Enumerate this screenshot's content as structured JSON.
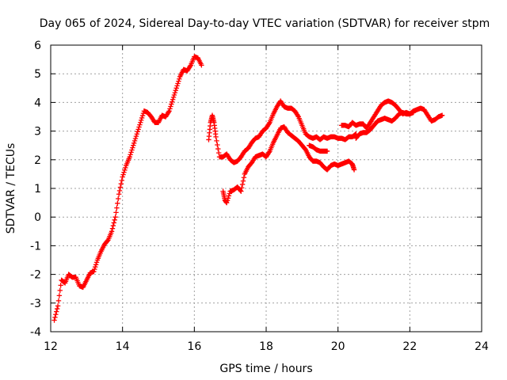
{
  "chart_data": {
    "type": "scatter",
    "title": "Day 065 of 2024, Sidereal Day-to-day VTEC variation (SDTVAR) for receiver stpm",
    "xlabel": "GPS time / hours",
    "ylabel": "SDTVAR / TECUs",
    "xlim": [
      12,
      24
    ],
    "ylim": [
      -4,
      6
    ],
    "xticks": [
      "12",
      "14",
      "16",
      "18",
      "20",
      "22",
      "24"
    ],
    "yticks": [
      "-4",
      "-3",
      "-2",
      "-1",
      "0",
      "1",
      "2",
      "3",
      "4",
      "5",
      "6"
    ],
    "grid": true,
    "marker": "plus",
    "color": "#ff0000",
    "series": [
      {
        "points": [
          [
            12.1,
            -3.6
          ],
          [
            12.2,
            -3.1
          ],
          [
            12.3,
            -2.2
          ],
          [
            12.4,
            -2.3
          ],
          [
            12.5,
            -2.0
          ],
          [
            12.6,
            -2.1
          ],
          [
            12.7,
            -2.1
          ],
          [
            12.8,
            -2.4
          ],
          [
            12.9,
            -2.45
          ],
          [
            13.0,
            -2.2
          ],
          [
            13.1,
            -1.95
          ],
          [
            13.2,
            -1.9
          ],
          [
            13.3,
            -1.5
          ],
          [
            13.4,
            -1.2
          ],
          [
            13.5,
            -0.95
          ],
          [
            13.6,
            -0.8
          ],
          [
            13.7,
            -0.5
          ],
          [
            13.8,
            0.0
          ],
          [
            13.9,
            0.8
          ],
          [
            14.0,
            1.4
          ],
          [
            14.1,
            1.8
          ],
          [
            14.2,
            2.1
          ],
          [
            14.3,
            2.5
          ],
          [
            14.4,
            2.9
          ],
          [
            14.5,
            3.3
          ],
          [
            14.6,
            3.7
          ],
          [
            14.7,
            3.65
          ],
          [
            14.8,
            3.5
          ],
          [
            14.9,
            3.3
          ],
          [
            15.0,
            3.3
          ],
          [
            15.1,
            3.55
          ],
          [
            15.2,
            3.5
          ],
          [
            15.3,
            3.7
          ],
          [
            15.4,
            4.1
          ],
          [
            15.5,
            4.5
          ],
          [
            15.6,
            4.9
          ],
          [
            15.7,
            5.15
          ],
          [
            15.8,
            5.1
          ],
          [
            15.9,
            5.3
          ],
          [
            16.0,
            5.6
          ],
          [
            16.1,
            5.55
          ],
          [
            16.2,
            5.3
          ]
        ]
      },
      {
        "points": [
          [
            16.4,
            2.7
          ],
          [
            16.45,
            3.3
          ],
          [
            16.5,
            3.55
          ],
          [
            16.55,
            3.3
          ],
          [
            16.6,
            2.8
          ],
          [
            16.7,
            2.1
          ],
          [
            16.8,
            2.1
          ],
          [
            16.9,
            2.2
          ],
          [
            17.0,
            2.0
          ],
          [
            17.1,
            1.9
          ],
          [
            17.2,
            1.95
          ],
          [
            17.3,
            2.1
          ],
          [
            17.4,
            2.3
          ],
          [
            17.5,
            2.4
          ],
          [
            17.6,
            2.6
          ],
          [
            17.7,
            2.75
          ],
          [
            17.8,
            2.8
          ],
          [
            17.9,
            3.0
          ],
          [
            18.0,
            3.1
          ],
          [
            18.1,
            3.3
          ],
          [
            18.2,
            3.6
          ],
          [
            18.3,
            3.85
          ],
          [
            18.4,
            4.05
          ],
          [
            18.5,
            3.85
          ],
          [
            18.6,
            3.8
          ],
          [
            18.7,
            3.8
          ],
          [
            18.8,
            3.7
          ],
          [
            18.9,
            3.5
          ],
          [
            19.0,
            3.2
          ],
          [
            19.1,
            2.9
          ],
          [
            19.2,
            2.8
          ],
          [
            19.3,
            2.75
          ],
          [
            19.4,
            2.8
          ],
          [
            19.5,
            2.7
          ],
          [
            19.6,
            2.8
          ],
          [
            19.7,
            2.75
          ],
          [
            19.8,
            2.8
          ],
          [
            19.9,
            2.8
          ],
          [
            20.0,
            2.75
          ],
          [
            20.1,
            2.75
          ],
          [
            20.2,
            2.7
          ],
          [
            20.3,
            2.8
          ],
          [
            20.4,
            2.8
          ],
          [
            20.5,
            2.9
          ]
        ]
      },
      {
        "points": [
          [
            16.8,
            0.9
          ],
          [
            16.85,
            0.6
          ],
          [
            16.9,
            0.5
          ],
          [
            17.0,
            0.9
          ],
          [
            17.1,
            0.95
          ],
          [
            17.2,
            1.05
          ],
          [
            17.3,
            0.9
          ],
          [
            17.4,
            1.5
          ],
          [
            17.5,
            1.75
          ],
          [
            17.6,
            1.9
          ],
          [
            17.7,
            2.1
          ],
          [
            17.8,
            2.15
          ],
          [
            17.9,
            2.2
          ],
          [
            18.0,
            2.1
          ],
          [
            18.1,
            2.3
          ],
          [
            18.2,
            2.6
          ],
          [
            18.3,
            2.85
          ],
          [
            18.4,
            3.1
          ],
          [
            18.5,
            3.15
          ],
          [
            18.6,
            2.95
          ],
          [
            18.7,
            2.85
          ],
          [
            18.8,
            2.75
          ],
          [
            18.9,
            2.65
          ],
          [
            19.0,
            2.5
          ],
          [
            19.1,
            2.35
          ],
          [
            19.2,
            2.1
          ],
          [
            19.3,
            1.95
          ],
          [
            19.4,
            1.95
          ],
          [
            19.5,
            1.9
          ],
          [
            19.6,
            1.75
          ],
          [
            19.7,
            1.65
          ],
          [
            19.8,
            1.8
          ],
          [
            19.9,
            1.85
          ],
          [
            20.0,
            1.8
          ],
          [
            20.1,
            1.85
          ],
          [
            20.2,
            1.9
          ],
          [
            20.3,
            1.95
          ],
          [
            20.4,
            1.85
          ],
          [
            20.45,
            1.65
          ]
        ]
      },
      {
        "points": [
          [
            19.2,
            2.5
          ],
          [
            19.3,
            2.45
          ],
          [
            19.4,
            2.35
          ],
          [
            19.5,
            2.3
          ],
          [
            19.6,
            2.3
          ],
          [
            19.7,
            2.3
          ]
        ]
      },
      {
        "points": [
          [
            20.1,
            3.2
          ],
          [
            20.2,
            3.2
          ],
          [
            20.3,
            3.15
          ],
          [
            20.4,
            3.3
          ],
          [
            20.5,
            3.2
          ],
          [
            20.6,
            3.25
          ],
          [
            20.7,
            3.25
          ],
          [
            20.8,
            3.1
          ],
          [
            20.9,
            3.3
          ],
          [
            21.0,
            3.5
          ],
          [
            21.1,
            3.7
          ],
          [
            21.2,
            3.9
          ],
          [
            21.3,
            4.0
          ],
          [
            21.4,
            4.05
          ],
          [
            21.5,
            4.0
          ],
          [
            21.6,
            3.9
          ],
          [
            21.7,
            3.75
          ],
          [
            21.8,
            3.6
          ],
          [
            21.9,
            3.65
          ],
          [
            22.0,
            3.6
          ],
          [
            22.1,
            3.7
          ],
          [
            22.2,
            3.75
          ],
          [
            22.3,
            3.8
          ],
          [
            22.4,
            3.75
          ],
          [
            22.5,
            3.55
          ],
          [
            22.6,
            3.35
          ],
          [
            22.7,
            3.4
          ],
          [
            22.8,
            3.5
          ],
          [
            22.9,
            3.55
          ]
        ]
      },
      {
        "points": [
          [
            20.5,
            2.75
          ],
          [
            20.6,
            2.9
          ],
          [
            20.7,
            2.95
          ],
          [
            20.8,
            2.95
          ],
          [
            20.9,
            3.05
          ],
          [
            21.0,
            3.2
          ],
          [
            21.1,
            3.35
          ],
          [
            21.2,
            3.4
          ],
          [
            21.3,
            3.45
          ],
          [
            21.4,
            3.4
          ],
          [
            21.5,
            3.35
          ],
          [
            21.6,
            3.45
          ],
          [
            21.7,
            3.6
          ],
          [
            21.8,
            3.65
          ],
          [
            21.9,
            3.6
          ],
          [
            22.0,
            3.6
          ],
          [
            22.1,
            3.65
          ]
        ]
      }
    ]
  }
}
